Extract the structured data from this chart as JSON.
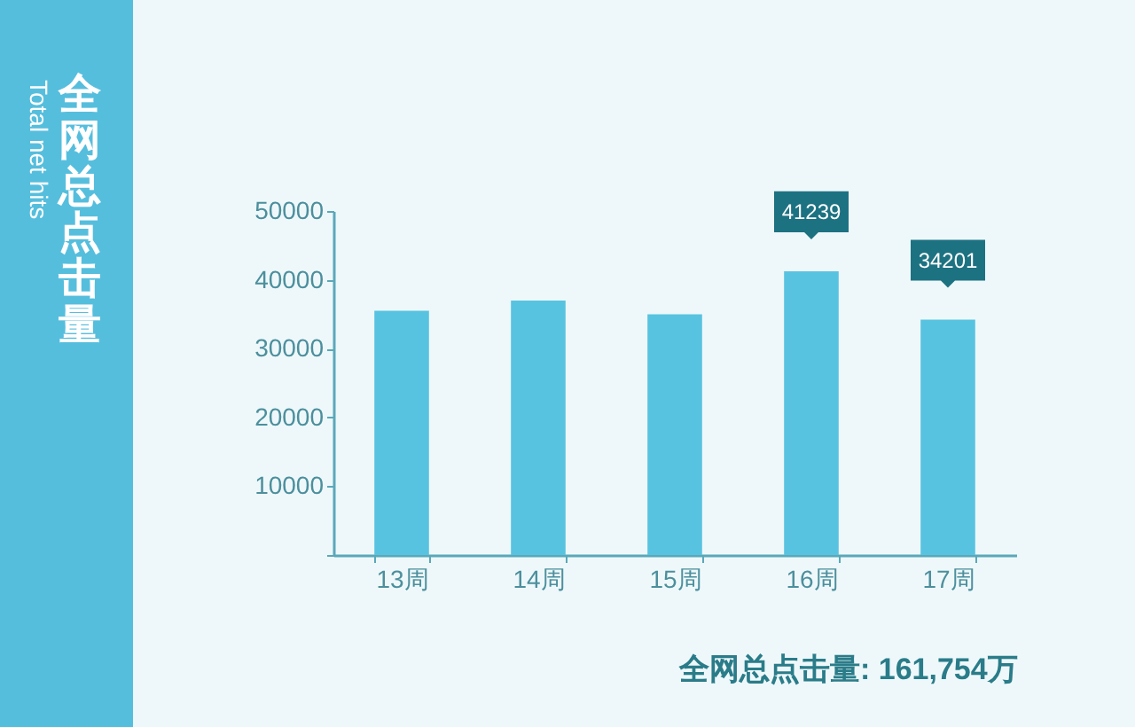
{
  "chart_data": {
    "type": "bar",
    "title": "全网总点击量",
    "subtitle": "Total net hits",
    "categories": [
      "13周",
      "14周",
      "15周",
      "16周",
      "17周"
    ],
    "values": [
      35500,
      37000,
      35000,
      41239,
      34201
    ],
    "color": "#58c3e0",
    "value_labels": [
      null,
      null,
      null,
      "41239",
      "34201"
    ],
    "ylim": [
      0,
      50000
    ],
    "yticks": [
      {
        "value": 0,
        "label": null
      },
      10000,
      20000,
      30000,
      40000,
      50000
    ],
    "annotations": [
      "全网总点击量: 161,754万"
    ]
  }
}
